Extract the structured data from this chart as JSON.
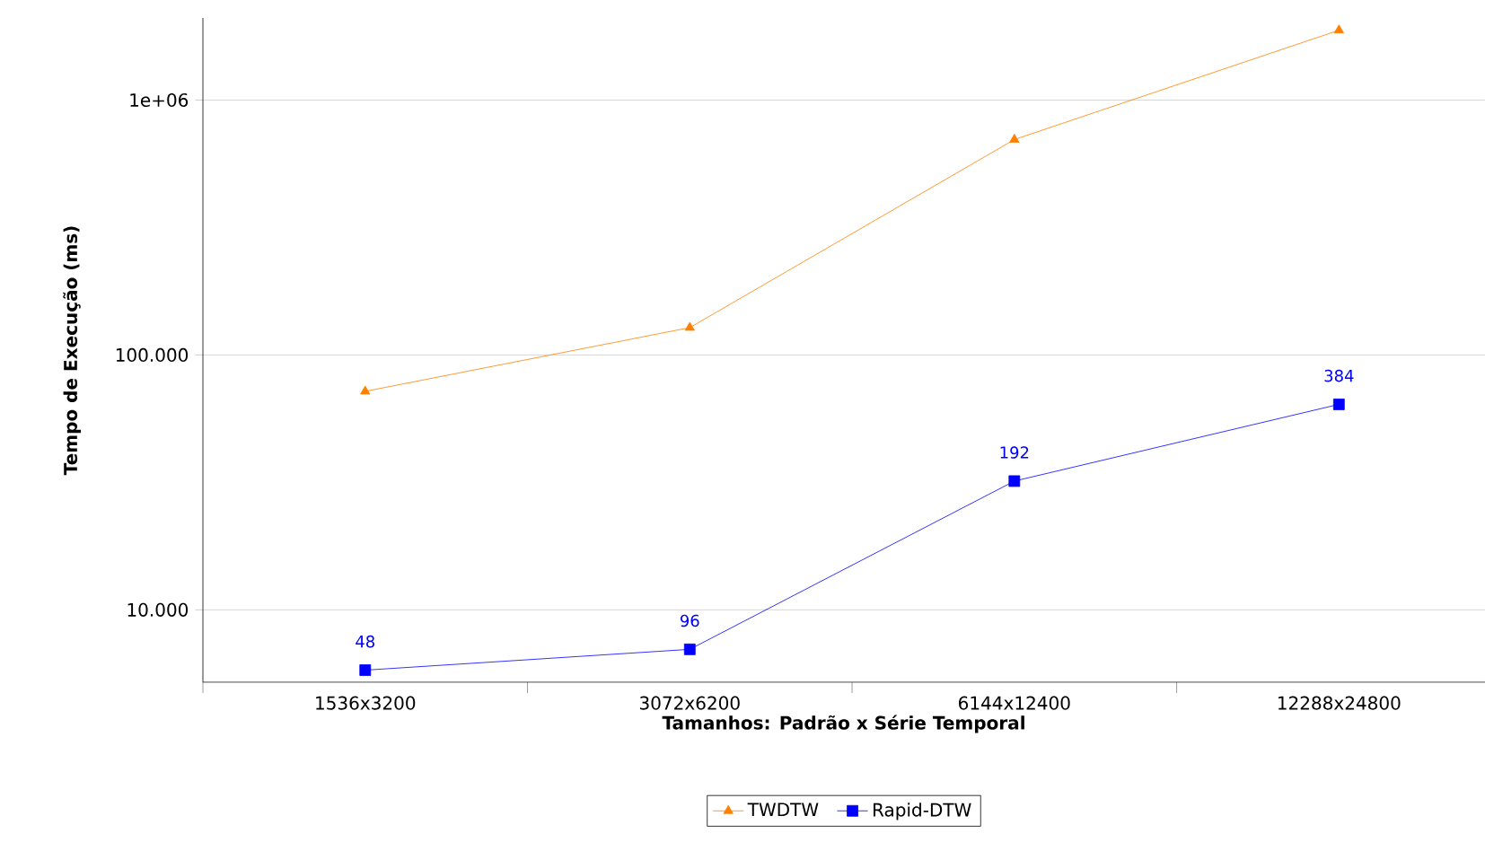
{
  "chart_data": {
    "type": "line",
    "xlabel": "Tamanhos: Padrão x Série Temporal",
    "ylabel": "Tempo de Execução (ms)",
    "categories": [
      "1536x3200",
      "3072x6200",
      "6144x12400",
      "12288x24800"
    ],
    "series": [
      {
        "name": "TWDTW",
        "color": "#ff8000",
        "marker": "triangle",
        "values": [
          72000,
          128000,
          700000,
          1880000
        ]
      },
      {
        "name": "Rapid-DTW",
        "color": "#0000ff",
        "marker": "square",
        "values": [
          5800,
          7000,
          32000,
          64000
        ]
      }
    ],
    "annotations": [
      {
        "text": "48",
        "x": "1536x3200",
        "y": 5800
      },
      {
        "text": "96",
        "x": "3072x6200",
        "y": 7000
      },
      {
        "text": "192",
        "x": "6144x12400",
        "y": 32000
      },
      {
        "text": "384",
        "x": "12288x24800",
        "y": 64000
      }
    ],
    "log": true,
    "ylim": [
      5200,
      2100000
    ],
    "yticks": [
      {
        "value": 10000,
        "label": "10.000"
      },
      {
        "value": 100000,
        "label": "100.000"
      },
      {
        "value": 1000000,
        "label": "1e+06"
      }
    ],
    "grid": "y",
    "legend": "bottom",
    "line_style": "solid"
  }
}
